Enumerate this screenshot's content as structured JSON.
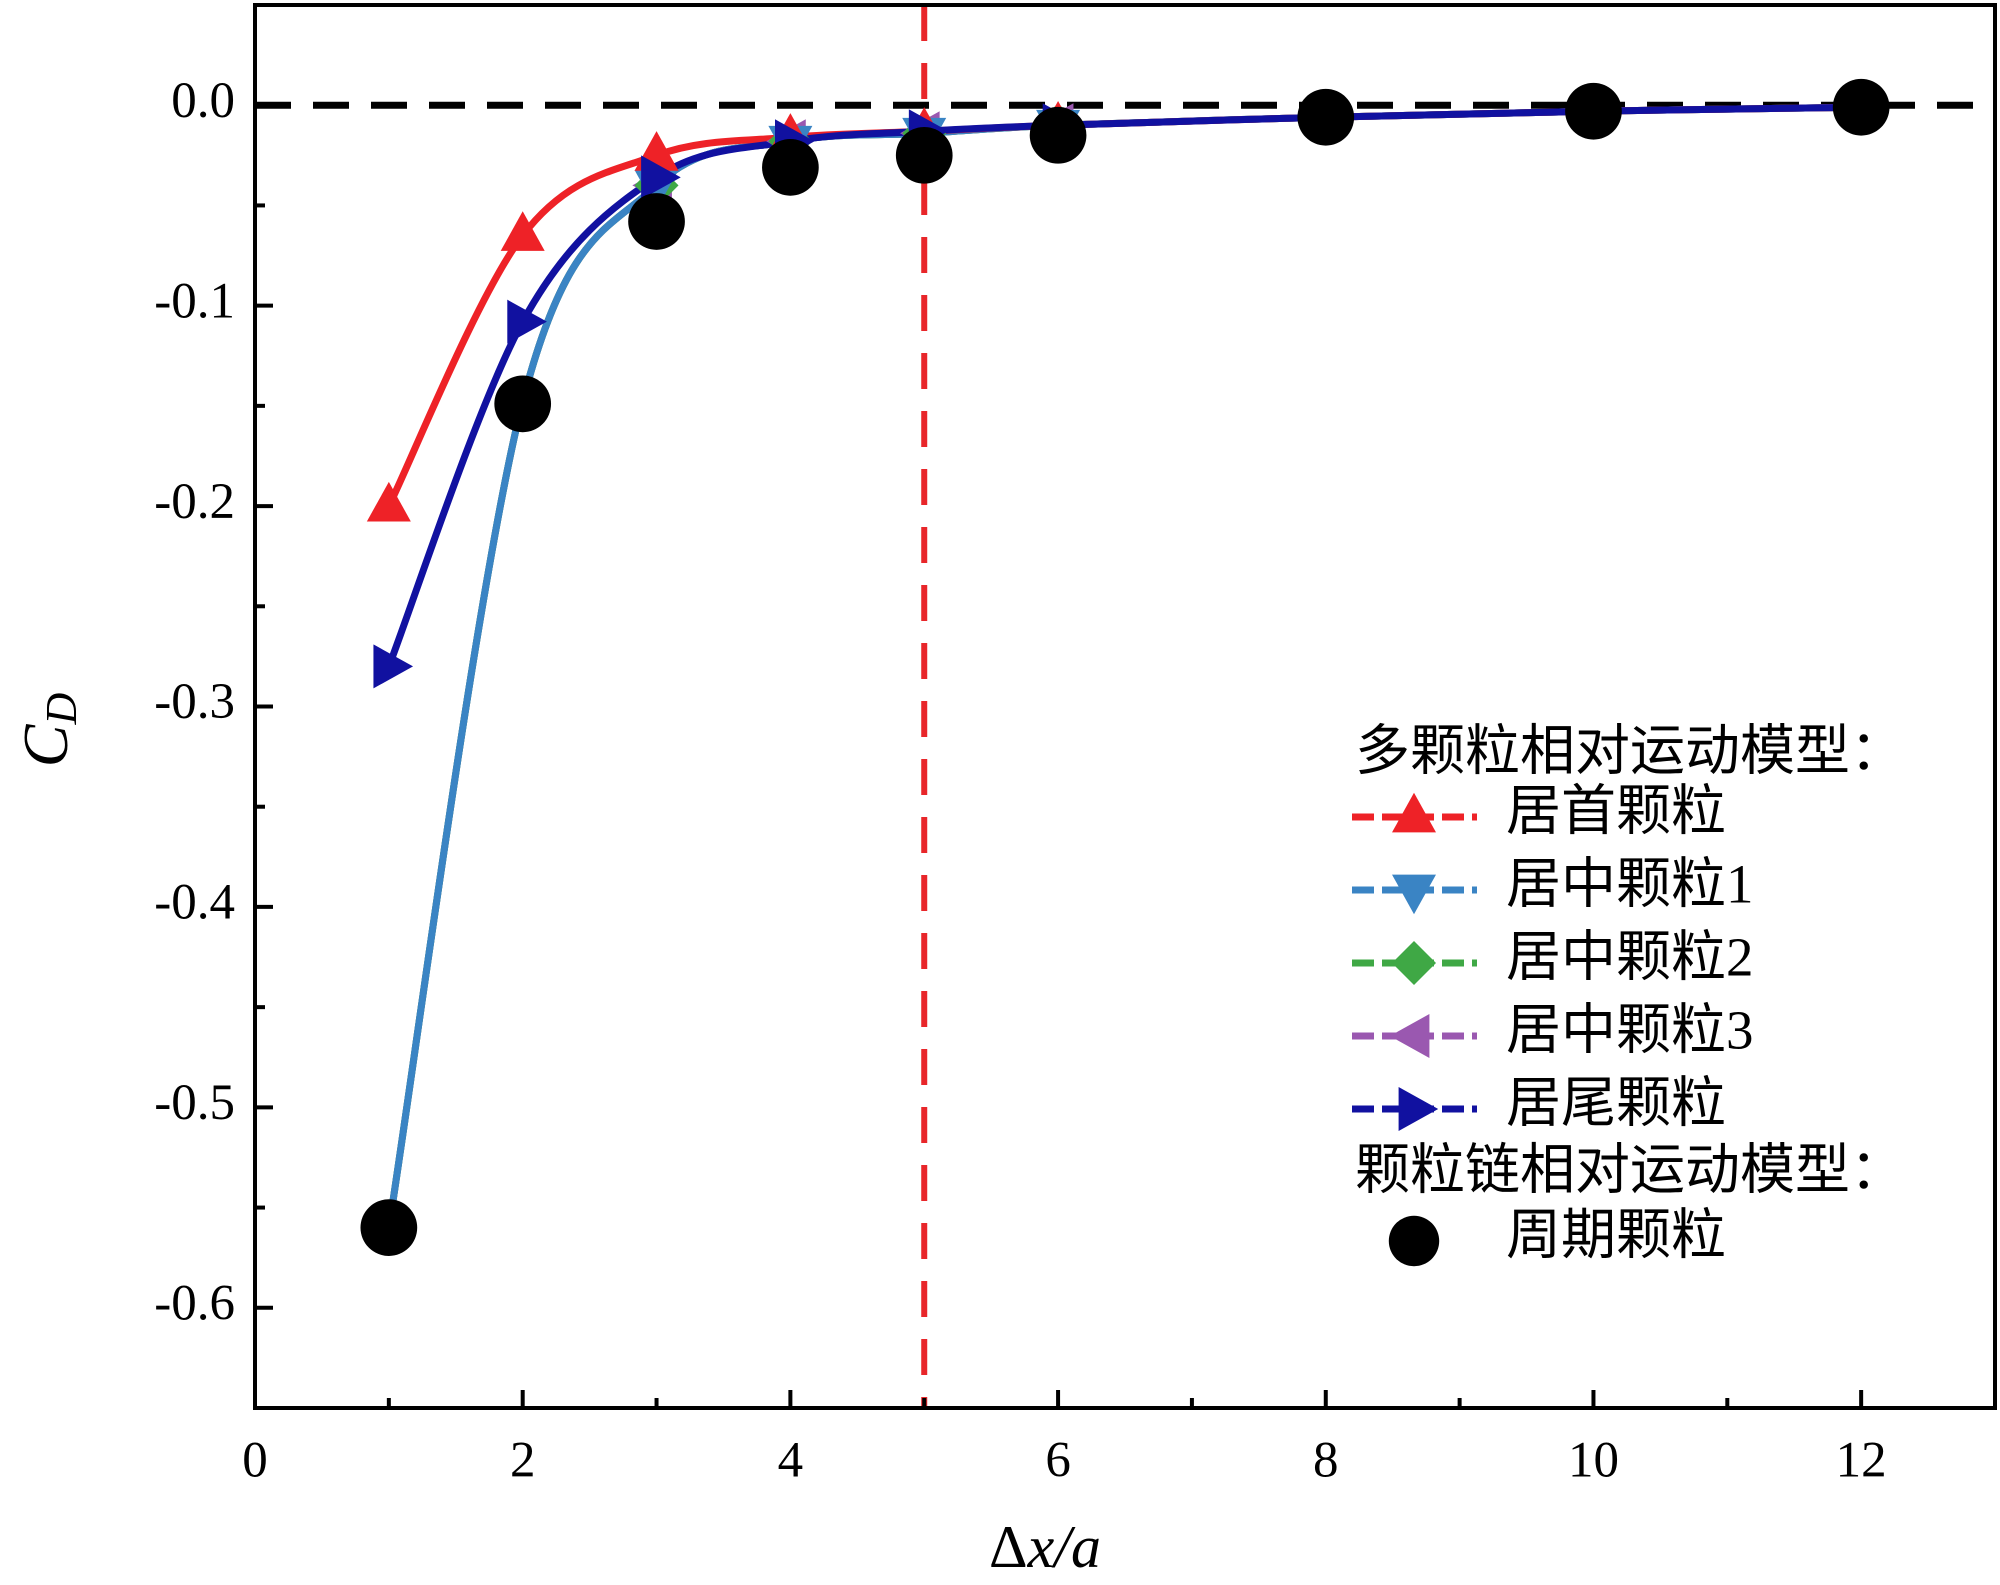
{
  "chart_data": {
    "type": "line",
    "xlabel": [
      "Δ",
      "x/a"
    ],
    "ylabel": {
      "main": "C",
      "sub": "D"
    },
    "x": [
      1,
      2,
      3,
      4,
      5,
      6,
      8,
      10,
      12
    ],
    "xlim": [
      0,
      13
    ],
    "xticks": [
      0,
      2,
      4,
      6,
      8,
      10,
      12
    ],
    "xminorticks": [
      1,
      3,
      5,
      7,
      9,
      11,
      13
    ],
    "ylim": [
      -0.65,
      0.05
    ],
    "yticks": [
      {
        "value": 0,
        "label": "0.0"
      },
      -0.1,
      -0.2,
      -0.3,
      -0.4,
      -0.5,
      -0.6
    ],
    "yminorticks": [
      0.05,
      -0.05,
      -0.15,
      -0.25,
      -0.35,
      -0.45,
      -0.55,
      -0.65
    ],
    "hline": {
      "value": 0,
      "color": "#000000"
    },
    "vline": {
      "value": 5,
      "color": "#e8262a"
    },
    "legend_titles": [
      "多颗粒相对运动模型：",
      "颗粒链相对运动模型："
    ],
    "series": [
      {
        "name": "居首颗粒",
        "color": "#ee2227",
        "marker": "triangle-up",
        "group": 0,
        "line": true,
        "values": [
          -0.2,
          -0.065,
          -0.025,
          -0.016,
          -0.013,
          -0.01,
          -0.006,
          -0.003,
          -0.001
        ]
      },
      {
        "name": "居中颗粒1",
        "color": "#3a84c4",
        "marker": "triangle-down",
        "group": 0,
        "line": true,
        "values": [
          -0.56,
          -0.148,
          -0.04,
          -0.018,
          -0.014,
          -0.01,
          -0.006,
          -0.003,
          -0.001
        ]
      },
      {
        "name": "居中颗粒2",
        "color": "#3fa845",
        "marker": "diamond",
        "group": 0,
        "line": true,
        "values": [
          -0.56,
          -0.148,
          -0.04,
          -0.018,
          -0.014,
          -0.01,
          -0.006,
          -0.003,
          -0.001
        ]
      },
      {
        "name": "居中颗粒3",
        "color": "#9a58b0",
        "marker": "triangle-left",
        "group": 0,
        "line": true,
        "values": [
          -0.56,
          -0.148,
          -0.04,
          -0.018,
          -0.014,
          -0.01,
          -0.006,
          -0.003,
          -0.001
        ]
      },
      {
        "name": "居尾颗粒",
        "color": "#1111a0",
        "marker": "triangle-right",
        "group": 0,
        "line": true,
        "values": [
          -0.28,
          -0.108,
          -0.036,
          -0.018,
          -0.013,
          -0.01,
          -0.006,
          -0.003,
          -0.001
        ]
      },
      {
        "name": "周期颗粒",
        "color": "#000000",
        "marker": "circle",
        "group": 1,
        "line": false,
        "values": [
          -0.56,
          -0.149,
          -0.058,
          -0.031,
          -0.025,
          -0.015,
          -0.006,
          -0.003,
          -0.001
        ]
      }
    ]
  }
}
